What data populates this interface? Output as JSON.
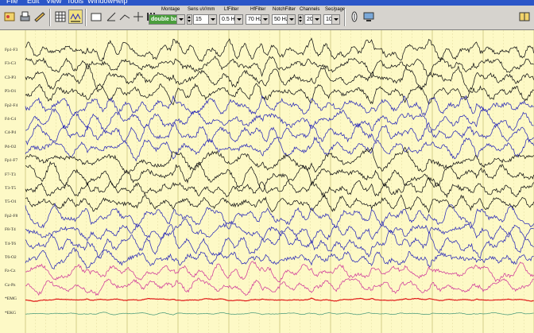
{
  "menu": {
    "items": [
      "File",
      "Edit",
      "View",
      "Tools",
      "Window",
      "Help"
    ]
  },
  "toolbar": {
    "montage": {
      "label": "Montage",
      "value": "double bar"
    },
    "sensitivity": {
      "label": "Sens uV/mm",
      "value": "15"
    },
    "lf_filter": {
      "label": "LfFilter",
      "value": "0.5 Hz"
    },
    "hf_filter": {
      "label": "HfFilter",
      "value": "70 Hz"
    },
    "notch_filter": {
      "label": "NotchFilter",
      "value": "50 Hz"
    },
    "channels": {
      "label": "Channels",
      "value": "20"
    },
    "sec_page": {
      "label": "Sec/page",
      "value": "10"
    },
    "icons": [
      "open-record-icon",
      "print-icon",
      "edit-icon",
      "grid-icon",
      "calibration-icon",
      "square-icon",
      "angle-icon",
      "line-icon",
      "cursor-icon",
      "bar-icon",
      "marker-icon",
      "montage-editor-icon",
      "book-icon"
    ]
  },
  "channels": [
    {
      "label": "Fp1-F3",
      "color": "black"
    },
    {
      "label": "F3-C3",
      "color": "black"
    },
    {
      "label": "C3-P3",
      "color": "black"
    },
    {
      "label": "P3-O1",
      "color": "black"
    },
    {
      "label": "Fp2-F4",
      "color": "blue"
    },
    {
      "label": "F4-C4",
      "color": "blue"
    },
    {
      "label": "C4-P4",
      "color": "blue"
    },
    {
      "label": "P4-O2",
      "color": "blue"
    },
    {
      "label": "Fp1-F7",
      "color": "black"
    },
    {
      "label": "F7-T3",
      "color": "black"
    },
    {
      "label": "T3-T5",
      "color": "black"
    },
    {
      "label": "T5-O1",
      "color": "black"
    },
    {
      "label": "Fp2-F8",
      "color": "blue"
    },
    {
      "label": "F8-T4",
      "color": "blue"
    },
    {
      "label": "T4-T6",
      "color": "blue"
    },
    {
      "label": "T6-O2",
      "color": "blue"
    },
    {
      "label": "Fz-Cz",
      "color": "pink"
    },
    {
      "label": "Cz-Pz",
      "color": "pink"
    },
    {
      "label": "*EMG",
      "color": "red"
    },
    {
      "label": "*EKG",
      "color": "green"
    }
  ],
  "colors": {
    "black": "#141414",
    "blue": "#2a2ab8",
    "pink": "#d03a9a",
    "red": "#e01818",
    "green": "#4a9a7a",
    "background": "#fdf9c6",
    "grid_major": "#c9c27a",
    "grid_minor": "#e2dca0"
  },
  "sec_per_page": 10
}
